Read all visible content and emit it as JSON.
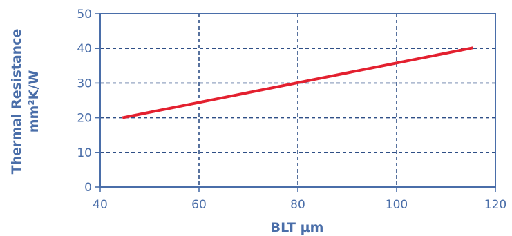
{
  "chart_data": {
    "type": "line",
    "title": "",
    "xlabel": "BLT µm",
    "ylabel_lines": [
      "Thermal Resistance",
      "mm²K/W"
    ],
    "xlim": [
      40,
      120
    ],
    "ylim": [
      0,
      50
    ],
    "xticks": [
      40,
      60,
      80,
      100,
      120
    ],
    "yticks": [
      0,
      10,
      20,
      30,
      40,
      50
    ],
    "grid": true,
    "grid_style": "dashed",
    "series": [
      {
        "color": "#e3202f",
        "x": [
          44.5,
          115.5
        ],
        "y": [
          20.0,
          40.2
        ]
      }
    ],
    "colors": {
      "axis": "#4a6ea9",
      "grid": "#2f4f86",
      "text": "#4a6ea9"
    }
  }
}
